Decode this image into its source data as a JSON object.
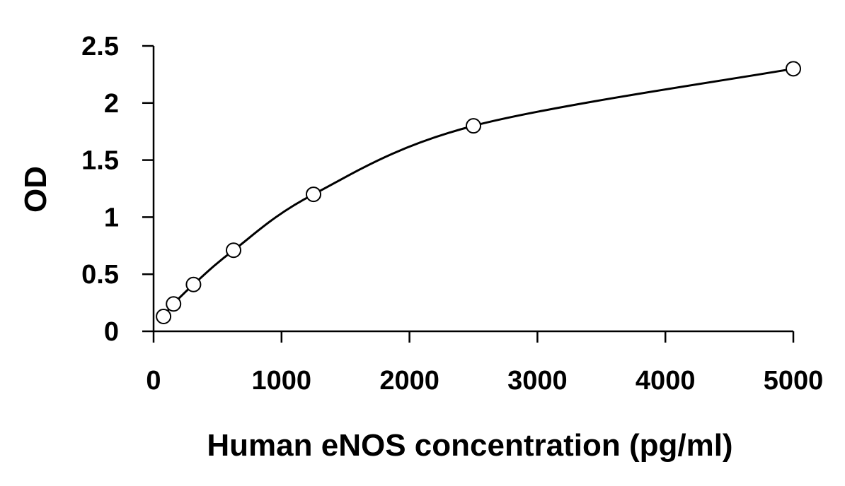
{
  "chart_data": {
    "type": "scatter",
    "title": "",
    "xlabel": "Human eNOS concentration (pg/ml)",
    "ylabel": "OD",
    "xlim": [
      0,
      5000
    ],
    "ylim": [
      0,
      2.5
    ],
    "x_ticks": [
      0,
      1000,
      2000,
      3000,
      4000,
      5000
    ],
    "x_tick_labels": [
      "0",
      "1000",
      "2000",
      "3000",
      "4000",
      "5000"
    ],
    "y_ticks": [
      0,
      0.5,
      1,
      1.5,
      2,
      2.5
    ],
    "y_tick_labels": [
      "0",
      "0.5",
      "1",
      "1.5",
      "2",
      "2.5"
    ],
    "grid": false,
    "legend": "none",
    "series": [
      {
        "marker": "open-circle",
        "color": "#000000",
        "fit_line": "smooth-curve",
        "x": [
          78,
          156,
          312,
          625,
          1250,
          2500,
          5000
        ],
        "y": [
          0.13,
          0.24,
          0.41,
          0.71,
          1.2,
          1.8,
          2.3
        ]
      }
    ]
  }
}
